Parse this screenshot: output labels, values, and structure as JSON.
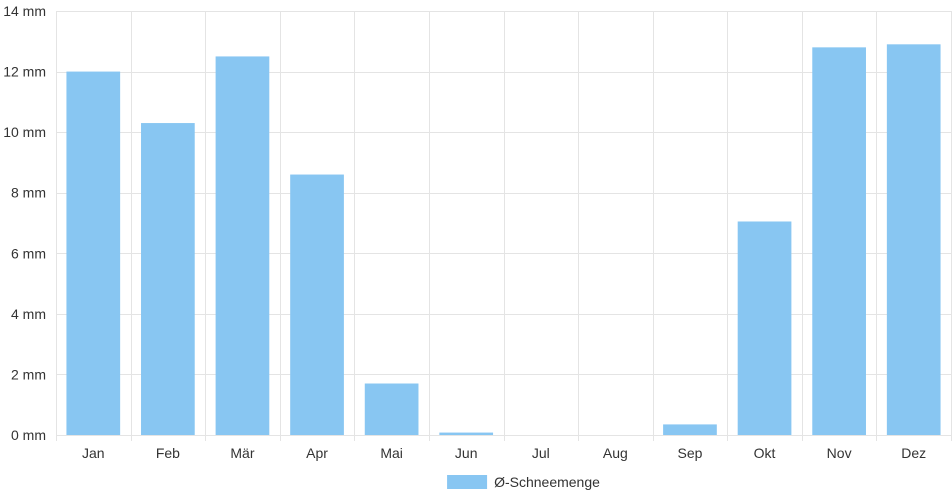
{
  "chart_data": {
    "type": "bar",
    "categories": [
      "Jan",
      "Feb",
      "Mär",
      "Apr",
      "Mai",
      "Jun",
      "Jul",
      "Aug",
      "Sep",
      "Okt",
      "Nov",
      "Dez"
    ],
    "series": [
      {
        "name": "Ø-Schneemenge",
        "values": [
          12.0,
          10.3,
          12.5,
          8.6,
          1.7,
          0.08,
          0,
          0,
          0.35,
          7.05,
          12.8,
          12.9
        ],
        "color": "#88c6f2"
      }
    ],
    "y_ticks": [
      0,
      2,
      4,
      6,
      8,
      10,
      12,
      14
    ],
    "y_tick_suffix": " mm",
    "ylim": [
      0,
      14
    ],
    "grid": true,
    "legend_position": "bottom",
    "grid_color": "#e4e4e4",
    "text_color": "#333333"
  }
}
